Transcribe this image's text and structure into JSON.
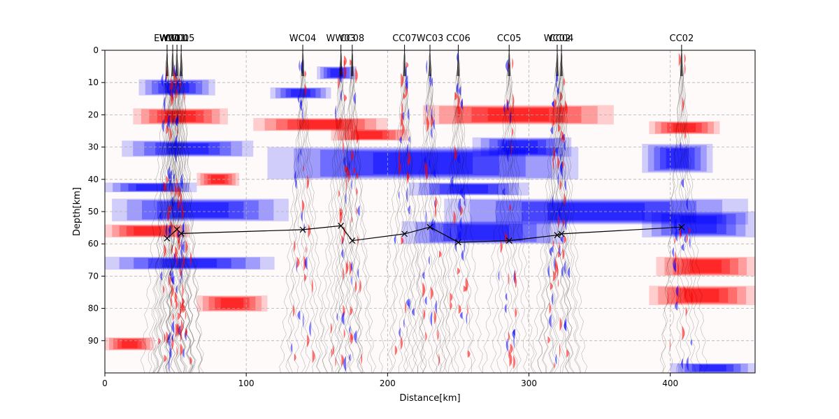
{
  "chart_data": {
    "type": "other",
    "title": "",
    "xlabel": "Distance[km]",
    "ylabel": "Depth[km]",
    "xlim": [
      0,
      460
    ],
    "ylim": [
      100,
      0
    ],
    "y_inverted": true,
    "grid": true,
    "x_ticks": [
      0,
      100,
      200,
      300,
      400
    ],
    "y_ticks": [
      0,
      10,
      20,
      30,
      40,
      50,
      60,
      70,
      80,
      90
    ],
    "colors": {
      "positive": "#ff0000",
      "negative": "#0000ff",
      "background": "#fffafa",
      "line": "#000000"
    },
    "stations": [
      {
        "name": "EW01",
        "x": 44
      },
      {
        "name": "WC01",
        "x": 48
      },
      {
        "name": "CC01",
        "x": 51
      },
      {
        "name": "WC05",
        "x": 54
      },
      {
        "name": "WC04",
        "x": 140
      },
      {
        "name": "WW03",
        "x": 167
      },
      {
        "name": "CC08",
        "x": 175
      },
      {
        "name": "CC07",
        "x": 212
      },
      {
        "name": "WC03",
        "x": 230
      },
      {
        "name": "CC06",
        "x": 250
      },
      {
        "name": "CC05",
        "x": 286
      },
      {
        "name": "WC02",
        "x": 320
      },
      {
        "name": "CC04",
        "x": 323
      },
      {
        "name": "CC02",
        "x": 408
      }
    ],
    "moho_line": {
      "x": [
        44,
        51,
        54,
        140,
        167,
        175,
        212,
        230,
        250,
        286,
        320,
        323,
        408
      ],
      "depth": [
        58.3,
        55.5,
        56.8,
        55.6,
        54.4,
        59.0,
        56.9,
        54.8,
        59.5,
        59.0,
        57.3,
        56.9,
        54.8
      ]
    },
    "rf_bands": {
      "blue": [
        {
          "x1": 24,
          "x2": 78,
          "d1": 9,
          "d2": 14
        },
        {
          "x1": 12,
          "x2": 105,
          "d1": 28,
          "d2": 33
        },
        {
          "x1": 0,
          "x2": 65,
          "d1": 41,
          "d2": 44
        },
        {
          "x1": 5,
          "x2": 130,
          "d1": 46,
          "d2": 53
        },
        {
          "x1": 0,
          "x2": 120,
          "d1": 64,
          "d2": 68
        },
        {
          "x1": 117,
          "x2": 160,
          "d1": 11.5,
          "d2": 15
        },
        {
          "x1": 115,
          "x2": 335,
          "d1": 30,
          "d2": 40
        },
        {
          "x1": 215,
          "x2": 300,
          "d1": 41,
          "d2": 45
        },
        {
          "x1": 240,
          "x2": 455,
          "d1": 46,
          "d2": 54
        },
        {
          "x1": 210,
          "x2": 325,
          "d1": 53,
          "d2": 60
        },
        {
          "x1": 380,
          "x2": 460,
          "d1": 50,
          "d2": 58
        },
        {
          "x1": 380,
          "x2": 430,
          "d1": 29,
          "d2": 38
        },
        {
          "x1": 150,
          "x2": 178,
          "d1": 5,
          "d2": 9
        },
        {
          "x1": 260,
          "x2": 330,
          "d1": 27,
          "d2": 33
        },
        {
          "x1": 400,
          "x2": 460,
          "d1": 97,
          "d2": 100
        }
      ],
      "red": [
        {
          "x1": 20,
          "x2": 87,
          "d1": 18,
          "d2": 23
        },
        {
          "x1": 105,
          "x2": 200,
          "d1": 21,
          "d2": 25
        },
        {
          "x1": 160,
          "x2": 215,
          "d1": 24.5,
          "d2": 28
        },
        {
          "x1": 225,
          "x2": 360,
          "d1": 17,
          "d2": 23
        },
        {
          "x1": 0,
          "x2": 60,
          "d1": 54,
          "d2": 58
        },
        {
          "x1": 65,
          "x2": 115,
          "d1": 76,
          "d2": 81
        },
        {
          "x1": 0,
          "x2": 35,
          "d1": 89,
          "d2": 93
        },
        {
          "x1": 385,
          "x2": 460,
          "d1": 73,
          "d2": 79
        },
        {
          "x1": 390,
          "x2": 460,
          "d1": 64,
          "d2": 70
        },
        {
          "x1": 385,
          "x2": 435,
          "d1": 22,
          "d2": 26
        },
        {
          "x1": 65,
          "x2": 95,
          "d1": 38,
          "d2": 42
        }
      ]
    }
  }
}
